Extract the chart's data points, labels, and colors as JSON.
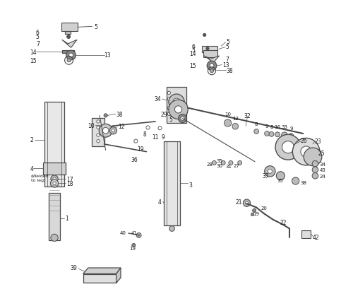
{
  "bg_color": "#ffffff",
  "line_color": "#4a4a4a",
  "text_color": "#1a1a1a"
}
